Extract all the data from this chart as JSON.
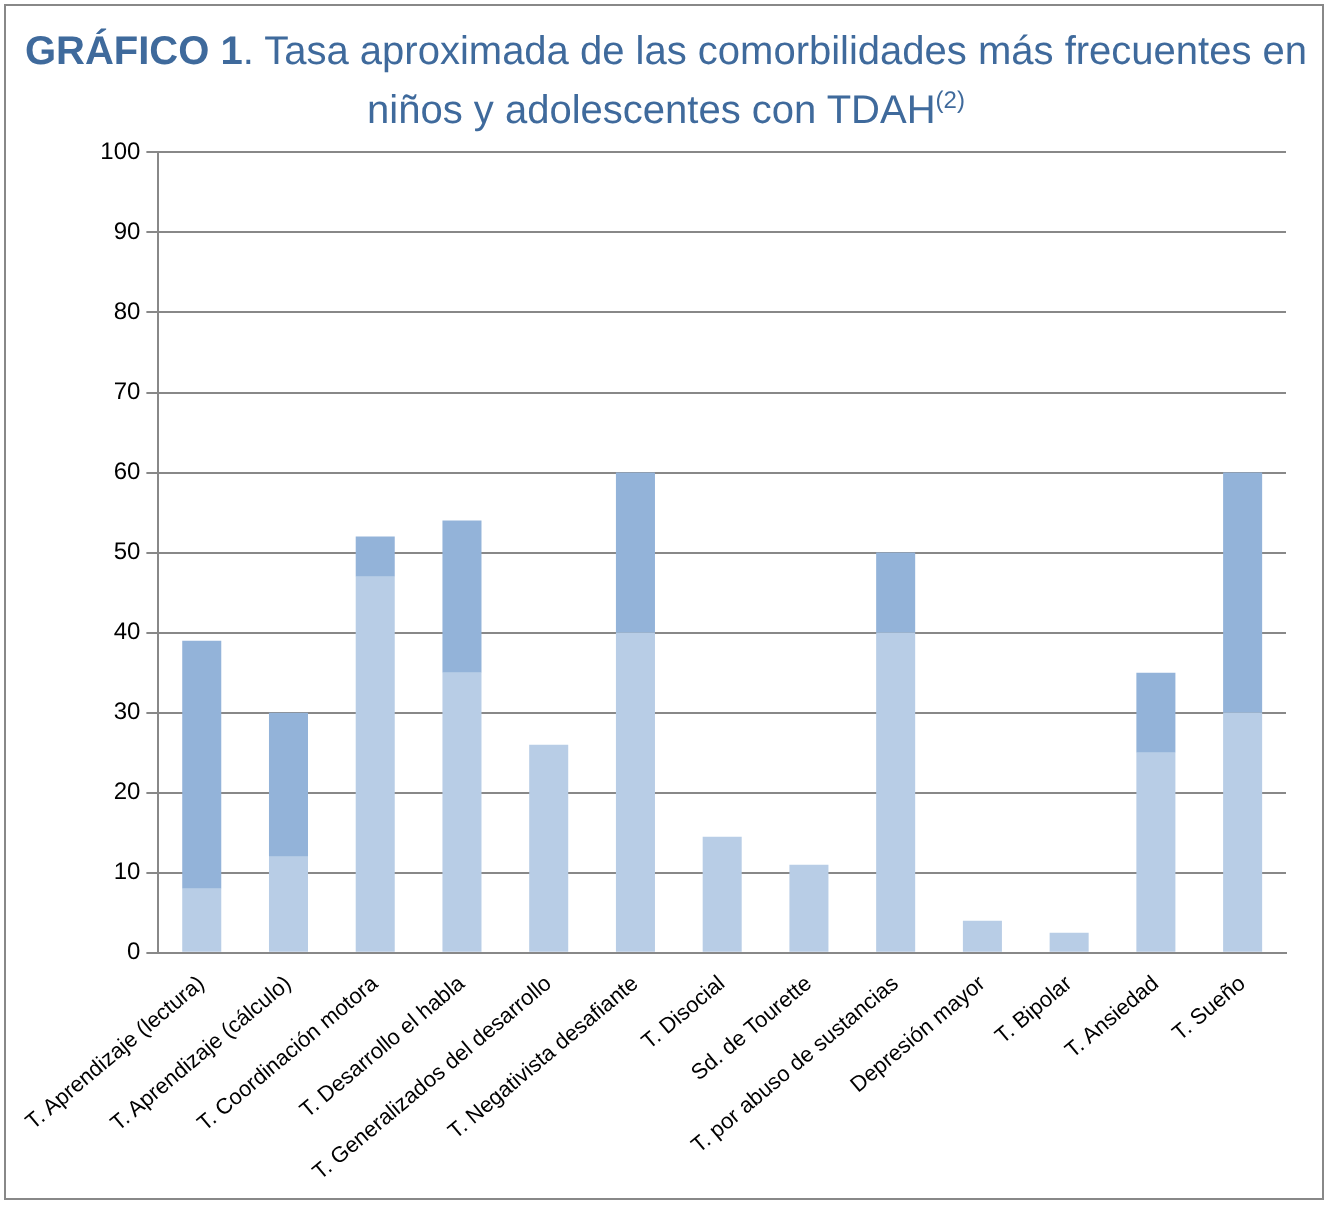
{
  "chart_data": {
    "type": "bar",
    "title": "GRÁFICO 1. Tasa aproximada de las comorbilidades más frecuentes en niños y adolescentes con TDAH$^{(2)}$",
    "categories": [
      "T. Aprendizaje (lectura)",
      "T. Aprendizaje (cálculo)",
      "T. Coordinación motora",
      "T. Desarrollo el habla",
      "T. Generalizados del desarrollo",
      "T. Negativista desafiante",
      "T. Disocial",
      "Sd. de Tourette",
      "T. por abuso de sustancias",
      "Depresión mayor",
      "T. Bipolar",
      "T. Ansiedad",
      "T. Sueño"
    ],
    "stacked": true,
    "series": [
      {
        "color": "#b8cde6",
        "values": [
          8,
          12,
          47,
          35,
          26,
          40,
          14.5,
          11,
          40,
          4,
          2.5,
          25,
          30
        ]
      },
      {
        "color": "#93b3d9",
        "values": [
          31,
          18,
          5,
          19,
          0,
          20,
          0,
          0,
          10,
          0,
          0,
          10,
          30
        ]
      }
    ],
    "ylim": [
      0,
      100
    ],
    "yticks": [
      0,
      10,
      20,
      30,
      40,
      50,
      60,
      70,
      80,
      90,
      100
    ],
    "grid": "y",
    "legend": false
  }
}
